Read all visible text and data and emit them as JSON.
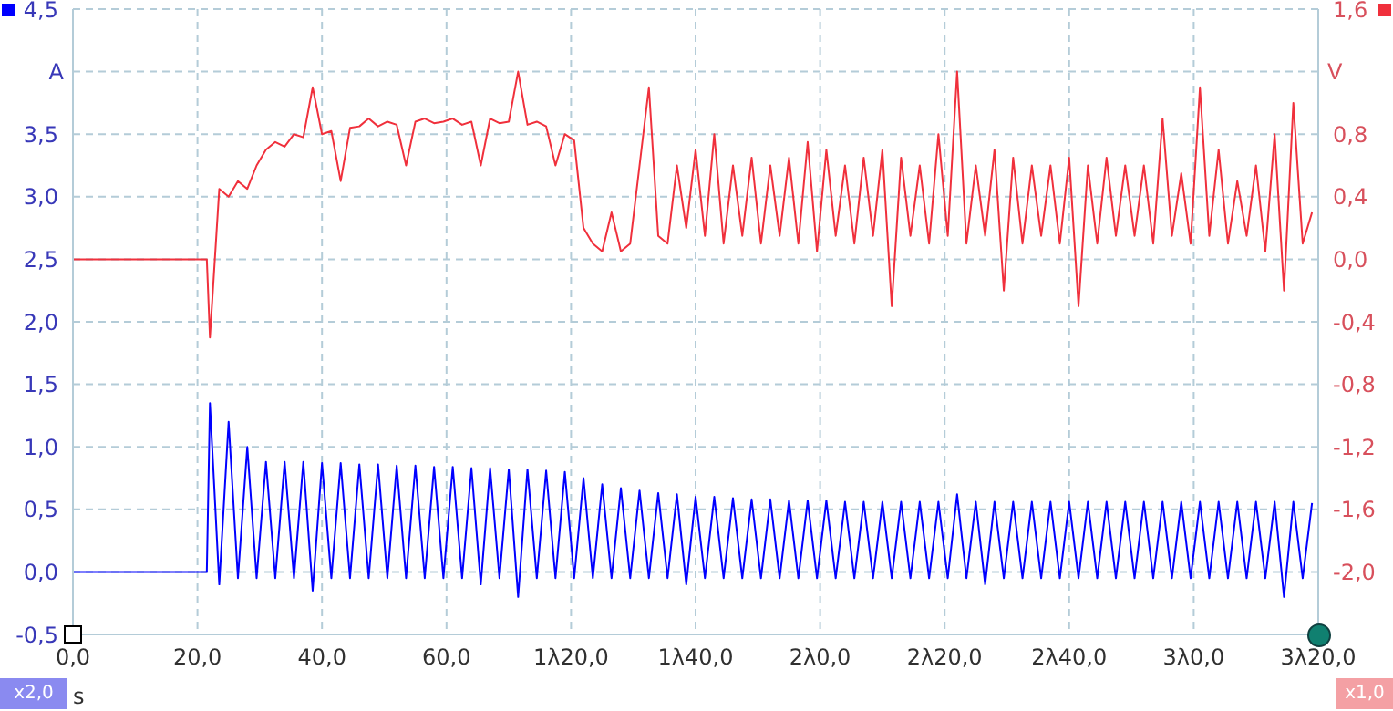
{
  "chart_data": {
    "type": "line",
    "xlabel": "s",
    "ylabel": "A",
    "y2label": "V",
    "annotations": [
      "x2,0",
      "x1,0"
    ],
    "x": [
      0,
      21.5,
      22,
      23.5,
      25,
      26.5,
      28,
      29.5,
      31,
      32.5,
      34,
      35.5,
      37,
      38.5,
      40,
      41.5,
      43,
      44.5,
      46,
      47.5,
      49,
      50.5,
      52,
      53.5,
      55,
      56.5,
      58,
      59.5,
      61,
      62.5,
      64,
      65.5,
      67,
      68.5,
      70,
      71.5,
      73,
      74.5,
      76,
      77.5,
      79,
      80.5,
      82,
      83.5,
      85,
      86.5,
      88,
      89.5,
      91,
      92.5,
      94,
      95.5,
      97,
      98.5,
      100,
      101.5,
      103,
      104.5,
      106,
      107.5,
      109,
      110.5,
      112,
      113.5,
      115,
      116.5,
      118,
      119.5,
      121,
      122.5,
      124,
      125.5,
      127,
      128.5,
      130,
      131.5,
      133,
      134.5,
      136,
      137.5,
      139,
      140.5,
      142,
      143.5,
      145,
      146.5,
      148,
      149.5,
      151,
      152.5,
      154,
      155.5,
      157,
      158.5,
      160,
      161.5,
      163,
      164.5,
      166,
      167.5,
      169,
      170.5,
      172,
      173.5,
      175,
      176.5,
      178,
      179.5,
      181,
      182.5,
      184,
      185.5,
      187,
      188.5,
      190,
      191.5,
      193,
      194.5,
      196,
      197.5,
      199
    ],
    "series": [
      {
        "color": "#0000ff",
        "values": [
          0,
          0,
          1.35,
          -0.1,
          1.2,
          -0.05,
          1.0,
          -0.05,
          0.88,
          -0.05,
          0.88,
          -0.05,
          0.88,
          -0.15,
          0.87,
          -0.05,
          0.87,
          -0.05,
          0.86,
          -0.05,
          0.86,
          -0.05,
          0.85,
          -0.05,
          0.85,
          -0.05,
          0.84,
          -0.05,
          0.84,
          -0.05,
          0.83,
          -0.1,
          0.83,
          -0.05,
          0.82,
          -0.2,
          0.82,
          -0.05,
          0.81,
          -0.05,
          0.8,
          -0.05,
          0.75,
          -0.05,
          0.7,
          -0.05,
          0.67,
          -0.05,
          0.65,
          -0.05,
          0.63,
          -0.05,
          0.62,
          -0.1,
          0.6,
          -0.05,
          0.6,
          -0.05,
          0.59,
          -0.05,
          0.58,
          -0.05,
          0.58,
          -0.05,
          0.57,
          -0.05,
          0.57,
          -0.05,
          0.57,
          -0.05,
          0.56,
          -0.05,
          0.56,
          -0.05,
          0.56,
          -0.05,
          0.56,
          -0.05,
          0.56,
          -0.05,
          0.56,
          -0.05,
          0.62,
          -0.05,
          0.56,
          -0.1,
          0.56,
          -0.05,
          0.56,
          -0.05,
          0.56,
          -0.05,
          0.56,
          -0.05,
          0.56,
          -0.05,
          0.56,
          -0.05,
          0.56,
          -0.05,
          0.56,
          -0.05,
          0.56,
          -0.05,
          0.56,
          -0.05,
          0.56,
          -0.05,
          0.56,
          -0.05,
          0.56,
          -0.05,
          0.56,
          -0.05,
          0.56,
          -0.05,
          0.56,
          -0.2,
          0.56,
          -0.05,
          0.55
        ]
      },
      {
        "color": "#f0303c",
        "axis": "y2",
        "values": [
          0,
          0,
          -0.5,
          0.45,
          0.4,
          0.5,
          0.45,
          0.6,
          0.7,
          0.75,
          0.72,
          0.8,
          0.78,
          1.1,
          0.8,
          0.82,
          0.5,
          0.84,
          0.85,
          0.9,
          0.85,
          0.88,
          0.86,
          0.6,
          0.88,
          0.9,
          0.87,
          0.88,
          0.9,
          0.86,
          0.88,
          0.6,
          0.9,
          0.87,
          0.88,
          1.2,
          0.86,
          0.88,
          0.85,
          0.6,
          0.8,
          0.76,
          0.2,
          0.1,
          0.05,
          0.3,
          0.05,
          0.1,
          0.6,
          1.1,
          0.15,
          0.1,
          0.6,
          0.2,
          0.7,
          0.15,
          0.8,
          0.1,
          0.6,
          0.15,
          0.65,
          0.1,
          0.6,
          0.15,
          0.65,
          0.1,
          0.75,
          0.05,
          0.7,
          0.15,
          0.6,
          0.1,
          0.65,
          0.15,
          0.7,
          -0.3,
          0.65,
          0.15,
          0.6,
          0.1,
          0.8,
          0.15,
          1.2,
          0.1,
          0.6,
          0.15,
          0.7,
          -0.2,
          0.65,
          0.1,
          0.6,
          0.15,
          0.6,
          0.1,
          0.65,
          -0.3,
          0.6,
          0.1,
          0.65,
          0.15,
          0.6,
          0.15,
          0.6,
          0.1,
          0.9,
          0.15,
          0.55,
          0.1,
          1.1,
          0.15,
          0.7,
          0.1,
          0.5,
          0.15,
          0.6,
          0.05,
          0.8,
          -0.2,
          1.0,
          0.1,
          0.3
        ]
      }
    ],
    "xlim": [
      0,
      200
    ],
    "xticks": [
      {
        "value": 0,
        "label": "0,0"
      },
      {
        "value": 20,
        "label": "20,0"
      },
      {
        "value": 40,
        "label": "40,0"
      },
      {
        "value": 60,
        "label": "60,0"
      },
      {
        "value": 80,
        "label": "1λ20,0"
      },
      {
        "value": 100,
        "label": "1λ40,0"
      },
      {
        "value": 120,
        "label": "2λ0,0"
      },
      {
        "value": 140,
        "label": "2λ20,0"
      },
      {
        "value": 160,
        "label": "2λ40,0"
      },
      {
        "value": 180,
        "label": "3λ0,0"
      },
      {
        "value": 200,
        "label": "3λ20,0"
      }
    ],
    "ylim": [
      -0.5,
      4.5
    ],
    "yticks": [
      {
        "value": -0.5,
        "label": "-0,5"
      },
      {
        "value": 0,
        "label": "0,0"
      },
      {
        "value": 0.5,
        "label": "0,5"
      },
      {
        "value": 1,
        "label": "1,0"
      },
      {
        "value": 1.5,
        "label": "1,5"
      },
      {
        "value": 2,
        "label": "2,0"
      },
      {
        "value": 2.5,
        "label": "2,5"
      },
      {
        "value": 3,
        "label": "3,0"
      },
      {
        "value": 3.5,
        "label": "3,5"
      },
      {
        "value": 4,
        "label": null
      },
      {
        "value": 4.5,
        "label": "4,5"
      }
    ],
    "y2lim": [
      -2.4,
      1.6
    ],
    "y2ticks": [
      {
        "value": -2.4,
        "label": null
      },
      {
        "value": -2,
        "label": "-2,0"
      },
      {
        "value": -1.6,
        "label": "-1,6"
      },
      {
        "value": -1.2,
        "label": "-1,2"
      },
      {
        "value": -0.8,
        "label": "-0,8"
      },
      {
        "value": -0.4,
        "label": "-0,4"
      },
      {
        "value": 0,
        "label": "0,0"
      },
      {
        "value": 0.4,
        "label": "0,4"
      },
      {
        "value": 0.8,
        "label": "0,8"
      },
      {
        "value": 1.2,
        "label": null
      },
      {
        "value": 1.6,
        "label": "1,6"
      }
    ],
    "grid": true,
    "marker": "none",
    "line_style": "solid"
  }
}
